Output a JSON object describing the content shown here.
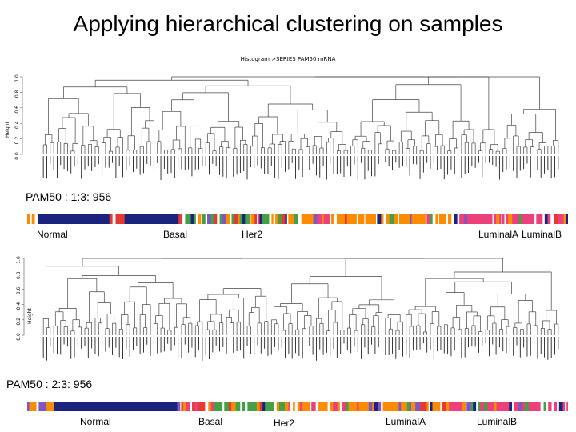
{
  "slide": {
    "title": "Applying hierarchical clustering on samples"
  },
  "top": {
    "plot_title": "Histogram >SERIES PAM50 mRNA",
    "y_axis_label": "Height",
    "y_ticks": [
      "0.0",
      "0.2",
      "0.4",
      "0.6",
      "0.8",
      "1.0"
    ],
    "config_label": "PAM50 : 1:3: 956",
    "class_labels": [
      "Normal",
      "Basal",
      "Her2",
      "LuminalA",
      "LuminalB"
    ]
  },
  "bottom": {
    "y_axis_label": "Height",
    "y_ticks": [
      "0.0",
      "0.2",
      "0.4",
      "0.6",
      "0.8",
      "1.0"
    ],
    "config_label": "PAM50 : 2:3: 956",
    "class_labels": [
      "Normal",
      "Basal",
      "Her2",
      "LuminalA",
      "LuminalB"
    ]
  },
  "colors": {
    "Normal": "#1a237e",
    "Basal": "#e53935",
    "Her2": "#43a047",
    "LuminalA": "#fb8c00",
    "LuminalB": "#ec407a",
    "Other": "#7e57c2"
  }
}
